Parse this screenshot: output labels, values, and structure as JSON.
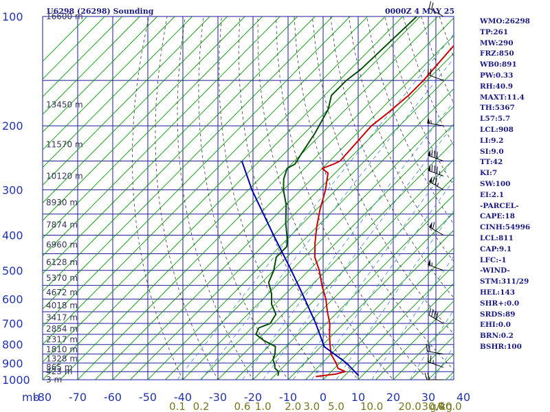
{
  "header": {
    "station": "U6298 (26298) Sounding",
    "valid": "0000Z  4 MAY 25"
  },
  "indices": [
    "WMO:26298",
    "TP:261",
    "MW:290",
    "FRZ:850",
    "WB0:891",
    "PW:0.33",
    "RH:40.9",
    "MAXT:11.4",
    "TH:5367",
    "L57:5.7",
    "LCL:908",
    "LI:9.2",
    "SI:9.0",
    "TT:42",
    "KI:7",
    "SW:100",
    "EI:2.1",
    "-PARCEL-",
    "CAPE:18",
    "CINH:54996",
    "LCL:811",
    "CAP:9.1",
    "LFC:-1",
    "-WIND-",
    "STM:311/29",
    "HEL:143",
    "SHR+:0.0",
    "SRDS:89",
    "EHI:0.0",
    "BRN:0.2",
    "BSHR:100"
  ],
  "colors": {
    "frame": "#1a1a9a",
    "isotherm": "#009900",
    "temperature": "#cc0000",
    "dewpoint": "#004d00",
    "parcel": "#0000aa",
    "dry_adiabat": "#333333",
    "mixing_ratio": "#3d86c6",
    "axis_text": "#2233aa",
    "mix_text": "#777722",
    "wind": "#000000",
    "text": "#1a1a80"
  },
  "chart_data": {
    "type": "skew-t",
    "title": "U6298 (26298) Sounding",
    "pressure_ticks_mb": [
      1000,
      900,
      800,
      700,
      600,
      500,
      400,
      300,
      200,
      100
    ],
    "pressure_label": "mb",
    "pressure_range_mb": [
      1000,
      100
    ],
    "temperature_ticks_c": [
      -80,
      -70,
      -60,
      -50,
      -40,
      -30,
      -20,
      -10,
      0,
      10,
      20,
      30,
      40
    ],
    "temperature_range_c": [
      -80,
      40
    ],
    "height_labels": [
      {
        "p": 1000,
        "label": "3 m"
      },
      {
        "p": 950,
        "label": "423 m"
      },
      {
        "p": 925,
        "label": "865 m"
      },
      {
        "p": 875,
        "label": "1328 m"
      },
      {
        "p": 825,
        "label": "1810 m"
      },
      {
        "p": 775,
        "label": "2317 m"
      },
      {
        "p": 725,
        "label": "2854 m"
      },
      {
        "p": 675,
        "label": "3417 m"
      },
      {
        "p": 625,
        "label": "4018 m"
      },
      {
        "p": 575,
        "label": "4672 m"
      },
      {
        "p": 525,
        "label": "5370 m"
      },
      {
        "p": 475,
        "label": "6128 m"
      },
      {
        "p": 425,
        "label": "6960 m"
      },
      {
        "p": 375,
        "label": "7874 m"
      },
      {
        "p": 325,
        "label": "8930 m"
      },
      {
        "p": 275,
        "label": "10120 m"
      },
      {
        "p": 225,
        "label": "11570 m"
      },
      {
        "p": 175,
        "label": "13450 m"
      },
      {
        "p": 100,
        "label": "16600 m"
      }
    ],
    "mixing_ratio_labels": [
      "0.1",
      "0.2",
      "0.6",
      "1.0",
      "2.0",
      "3.0",
      "5.0",
      "10.0",
      "20.0",
      "30.0",
      "40.0"
    ],
    "mixing_ratio_unit": "g/kg",
    "series": [
      {
        "key": "temperature",
        "points": [
          {
            "p": 980,
            "t": -3
          },
          {
            "p": 965,
            "t": 2
          },
          {
            "p": 950,
            "t": 4
          },
          {
            "p": 930,
            "t": 1
          },
          {
            "p": 900,
            "t": -1
          },
          {
            "p": 850,
            "t": -5
          },
          {
            "p": 800,
            "t": -8
          },
          {
            "p": 750,
            "t": -11
          },
          {
            "p": 700,
            "t": -14
          },
          {
            "p": 650,
            "t": -18
          },
          {
            "p": 600,
            "t": -22
          },
          {
            "p": 550,
            "t": -27
          },
          {
            "p": 500,
            "t": -32
          },
          {
            "p": 460,
            "t": -37
          },
          {
            "p": 420,
            "t": -41
          },
          {
            "p": 380,
            "t": -45
          },
          {
            "p": 340,
            "t": -49
          },
          {
            "p": 300,
            "t": -53
          },
          {
            "p": 270,
            "t": -57
          },
          {
            "p": 262,
            "t": -60
          },
          {
            "p": 255,
            "t": -58
          },
          {
            "p": 250,
            "t": -57
          },
          {
            "p": 200,
            "t": -58
          },
          {
            "p": 185,
            "t": -57
          },
          {
            "p": 165,
            "t": -56
          },
          {
            "p": 150,
            "t": -56
          },
          {
            "p": 125,
            "t": -57
          },
          {
            "p": 100,
            "t": -58
          }
        ]
      },
      {
        "key": "dewpoint",
        "points": [
          {
            "p": 975,
            "t": -14
          },
          {
            "p": 950,
            "t": -15
          },
          {
            "p": 930,
            "t": -17
          },
          {
            "p": 910,
            "t": -18
          },
          {
            "p": 880,
            "t": -20
          },
          {
            "p": 850,
            "t": -21
          },
          {
            "p": 810,
            "t": -23
          },
          {
            "p": 780,
            "t": -28
          },
          {
            "p": 750,
            "t": -32
          },
          {
            "p": 720,
            "t": -33
          },
          {
            "p": 700,
            "t": -31
          },
          {
            "p": 660,
            "t": -32
          },
          {
            "p": 620,
            "t": -36
          },
          {
            "p": 580,
            "t": -39
          },
          {
            "p": 540,
            "t": -43
          },
          {
            "p": 500,
            "t": -45
          },
          {
            "p": 460,
            "t": -48
          },
          {
            "p": 430,
            "t": -48
          },
          {
            "p": 410,
            "t": -50
          },
          {
            "p": 370,
            "t": -55
          },
          {
            "p": 330,
            "t": -60
          },
          {
            "p": 300,
            "t": -65
          },
          {
            "p": 280,
            "t": -68
          },
          {
            "p": 262,
            "t": -70
          },
          {
            "p": 255,
            "t": -69
          },
          {
            "p": 240,
            "t": -70
          },
          {
            "p": 210,
            "t": -72
          },
          {
            "p": 180,
            "t": -75
          },
          {
            "p": 165,
            "t": -78
          },
          {
            "p": 150,
            "t": -78
          },
          {
            "p": 140,
            "t": -77
          },
          {
            "p": 100,
            "t": -76
          }
        ]
      },
      {
        "key": "parcel",
        "points": [
          {
            "p": 975,
            "t": 9
          },
          {
            "p": 900,
            "t": 2
          },
          {
            "p": 811,
            "t": -9
          },
          {
            "p": 700,
            "t": -18
          },
          {
            "p": 600,
            "t": -28
          },
          {
            "p": 500,
            "t": -40
          },
          {
            "p": 400,
            "t": -55
          },
          {
            "p": 300,
            "t": -74
          },
          {
            "p": 250,
            "t": -85
          }
        ]
      }
    ],
    "wind_barbs": [
      {
        "p": 1000,
        "dir": 270,
        "spd": 20
      },
      {
        "p": 925,
        "dir": 290,
        "spd": 25
      },
      {
        "p": 850,
        "dir": 280,
        "spd": 20
      },
      {
        "p": 700,
        "dir": 300,
        "spd": 40
      },
      {
        "p": 500,
        "dir": 290,
        "spd": 55
      },
      {
        "p": 400,
        "dir": 300,
        "spd": 60
      },
      {
        "p": 300,
        "dir": 300,
        "spd": 75
      },
      {
        "p": 275,
        "dir": 290,
        "spd": 85
      },
      {
        "p": 250,
        "dir": 290,
        "spd": 80
      },
      {
        "p": 200,
        "dir": 280,
        "spd": 55
      },
      {
        "p": 150,
        "dir": 290,
        "spd": 20
      },
      {
        "p": 100,
        "dir": 300,
        "spd": 20
      }
    ]
  }
}
